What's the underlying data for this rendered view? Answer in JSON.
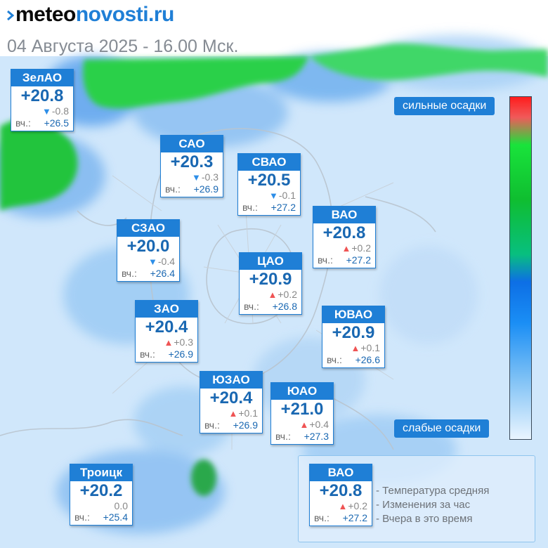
{
  "brand": {
    "left": "meteo",
    "right": "novosti.ru"
  },
  "date_text": "04 Августа 2025 - 16.00 Мск.",
  "yesterday_label": "вч.:",
  "colors": {
    "accent": "#1f7fd6",
    "temp_text": "#1a68b2",
    "rise": "#ef5454",
    "fall": "#2d8ee8"
  },
  "districts": [
    {
      "name": "ЗелАО",
      "temp": "+20.8",
      "dir": "down",
      "change": "-0.8",
      "yest": "+26.5"
    },
    {
      "name": "САО",
      "temp": "+20.3",
      "dir": "down",
      "change": "-0.3",
      "yest": "+26.9"
    },
    {
      "name": "СВАО",
      "temp": "+20.5",
      "dir": "down",
      "change": "-0.1",
      "yest": "+27.2"
    },
    {
      "name": "ВАО",
      "temp": "+20.8",
      "dir": "up",
      "change": "+0.2",
      "yest": "+27.2"
    },
    {
      "name": "СЗАО",
      "temp": "+20.0",
      "dir": "down",
      "change": "-0.4",
      "yest": "+26.4"
    },
    {
      "name": "ЦАО",
      "temp": "+20.9",
      "dir": "up",
      "change": "+0.2",
      "yest": "+26.8"
    },
    {
      "name": "ЗАО",
      "temp": "+20.4",
      "dir": "up",
      "change": "+0.3",
      "yest": "+26.9"
    },
    {
      "name": "ЮВАО",
      "temp": "+20.9",
      "dir": "up",
      "change": "+0.1",
      "yest": "+26.6"
    },
    {
      "name": "ЮЗАО",
      "temp": "+20.4",
      "dir": "up",
      "change": "+0.1",
      "yest": "+26.9"
    },
    {
      "name": "ЮАО",
      "temp": "+21.0",
      "dir": "up",
      "change": "+0.4",
      "yest": "+27.3"
    },
    {
      "name": "Троицк",
      "temp": "+20.2",
      "dir": "none",
      "change": "0.0",
      "yest": "+25.4"
    }
  ],
  "precip_scale": {
    "top_label": "сильные осадки",
    "bottom_label": "слабые осадки"
  },
  "legend": {
    "sample": {
      "name": "ВАО",
      "temp": "+20.8",
      "dir": "up",
      "change": "+0.2",
      "yest": "+27.2"
    },
    "items": [
      "- Температура средняя",
      "- Изменения за час",
      "- Вчера в это время"
    ]
  }
}
